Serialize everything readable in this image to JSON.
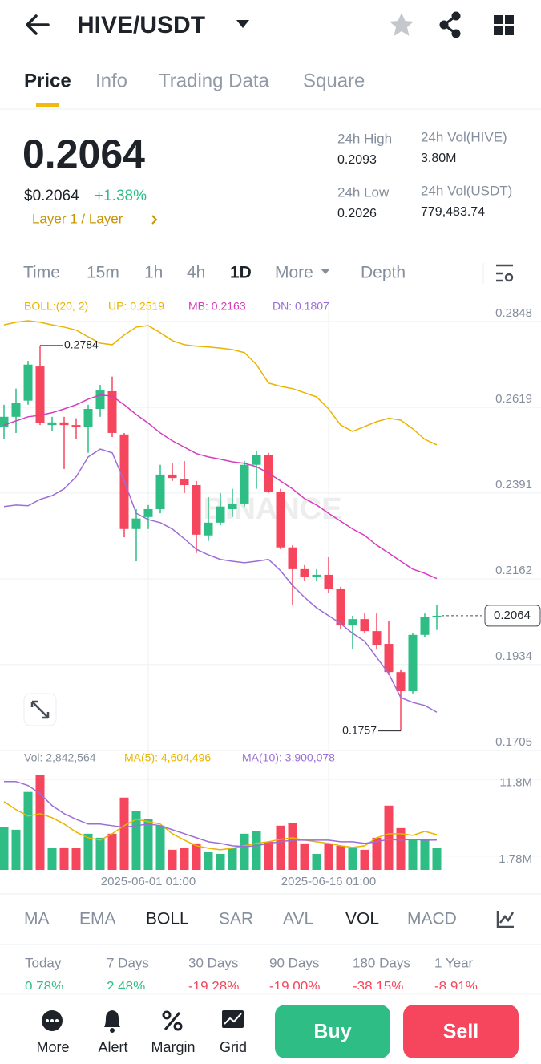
{
  "header": {
    "title": "HIVE/USDT"
  },
  "tabs": [
    "Price",
    "Info",
    "Trading Data",
    "Square"
  ],
  "ticker": {
    "price": "0.2064",
    "price_usd": "$0.2064",
    "change": "+1.38%",
    "tag": "Layer 1 / Layer"
  },
  "stats": [
    {
      "label": "24h High",
      "value": "0.2093"
    },
    {
      "label": "24h Vol(HIVE)",
      "value": "3.80M"
    },
    {
      "label": "24h Low",
      "value": "0.2026"
    },
    {
      "label": "24h Vol(USDT)",
      "value": "779,483.74"
    }
  ],
  "intervals": [
    "Time",
    "15m",
    "1h",
    "4h",
    "1D",
    "More",
    "Depth"
  ],
  "watermark": "BINANCE",
  "indicators": [
    "MA",
    "EMA",
    "BOLL",
    "SAR",
    "AVL",
    "VOL",
    "MACD"
  ],
  "performance": [
    {
      "label": "Today",
      "value": "0.78%"
    },
    {
      "label": "7 Days",
      "value": "2.48%"
    },
    {
      "label": "30 Days",
      "value": "-19.28%"
    },
    {
      "label": "90 Days",
      "value": "-19.00%"
    },
    {
      "label": "180 Days",
      "value": "-38.15%"
    },
    {
      "label": "1 Year",
      "value": "-8.91%"
    }
  ],
  "actions": [
    "More",
    "Alert",
    "Margin",
    "Grid"
  ],
  "buttons": [
    "Buy",
    "Sell"
  ],
  "chart_data": [
    {
      "type": "candlestick",
      "indicator": "BOLL:(20, 2)",
      "open": [
        0.2566,
        0.2594,
        0.2637,
        0.2728,
        0.2572,
        0.2579,
        0.2572,
        0.2566,
        0.2615,
        0.2662,
        0.2547,
        0.2295,
        0.2327,
        0.2348,
        0.244,
        0.2429,
        0.2412,
        0.2278,
        0.2312,
        0.2348,
        0.2363,
        0.2466,
        0.2493,
        0.2395,
        0.2246,
        0.2188,
        0.2167,
        0.2173,
        0.2135,
        0.2038,
        0.2055,
        0.2023,
        0.1989,
        0.1914,
        0.1863,
        0.2013,
        0.206
      ],
      "high": [
        0.2626,
        0.2669,
        0.2743,
        0.2784,
        0.2594,
        0.2594,
        0.259,
        0.2626,
        0.2679,
        0.2701,
        0.2551,
        0.2348,
        0.2359,
        0.2466,
        0.247,
        0.2476,
        0.2423,
        0.238,
        0.2391,
        0.2402,
        0.2476,
        0.2504,
        0.2498,
        0.2402,
        0.2252,
        0.2199,
        0.2188,
        0.222,
        0.2141,
        0.2064,
        0.207,
        0.207,
        0.2049,
        0.1921,
        0.2017,
        0.207,
        0.2093
      ],
      "low": [
        0.2534,
        0.2551,
        0.2626,
        0.2572,
        0.2555,
        0.2455,
        0.2534,
        0.2498,
        0.2594,
        0.254,
        0.2273,
        0.2209,
        0.2295,
        0.2337,
        0.2423,
        0.2391,
        0.2231,
        0.2263,
        0.2305,
        0.2327,
        0.2355,
        0.2402,
        0.2391,
        0.2241,
        0.2092,
        0.2156,
        0.2156,
        0.2124,
        0.2028,
        0.1974,
        0.2017,
        0.1974,
        0.1906,
        0.1757,
        0.1857,
        0.2006,
        0.2026
      ],
      "close": [
        0.2594,
        0.2632,
        0.2733,
        0.2577,
        0.2579,
        0.2572,
        0.2566,
        0.2615,
        0.2664,
        0.2551,
        0.2295,
        0.2323,
        0.2348,
        0.244,
        0.2431,
        0.2412,
        0.228,
        0.2312,
        0.2355,
        0.2363,
        0.2466,
        0.2493,
        0.2395,
        0.2246,
        0.2188,
        0.2167,
        0.2173,
        0.2135,
        0.2038,
        0.2055,
        0.2023,
        0.1985,
        0.1914,
        0.1863,
        0.2013,
        0.206,
        0.2064
      ],
      "up_color": "#2ebd85",
      "down_color": "#f6465d",
      "series": [
        {
          "name": "UP: 0.2519",
          "color": "#e8b400",
          "values": [
            0.2839,
            0.2846,
            0.285,
            0.2846,
            0.2839,
            0.2833,
            0.2825,
            0.2807,
            0.279,
            0.2786,
            0.2812,
            0.2833,
            0.2837,
            0.2818,
            0.2797,
            0.2786,
            0.2782,
            0.278,
            0.2777,
            0.2773,
            0.2765,
            0.2733,
            0.2684,
            0.2675,
            0.2669,
            0.2658,
            0.2647,
            0.2615,
            0.2572,
            0.2555,
            0.2568,
            0.2581,
            0.259,
            0.2585,
            0.2562,
            0.2534,
            0.2519
          ]
        },
        {
          "name": "MB: 0.2163",
          "color": "#d63bbd",
          "values": [
            0.2572,
            0.2583,
            0.2594,
            0.2598,
            0.2605,
            0.2615,
            0.2626,
            0.2641,
            0.2652,
            0.2649,
            0.2626,
            0.26,
            0.2577,
            0.2551,
            0.253,
            0.2513,
            0.2496,
            0.2487,
            0.2481,
            0.2474,
            0.247,
            0.2461,
            0.2444,
            0.2423,
            0.2402,
            0.2376,
            0.2359,
            0.2337,
            0.2316,
            0.2295,
            0.2278,
            0.2252,
            0.2231,
            0.2209,
            0.2188,
            0.2177,
            0.2163
          ]
        },
        {
          "name": "DN: 0.1807",
          "color": "#9b6dd6",
          "values": [
            0.2355,
            0.2359,
            0.2357,
            0.2374,
            0.2384,
            0.2402,
            0.2434,
            0.2487,
            0.2508,
            0.2498,
            0.2423,
            0.2337,
            0.232,
            0.2312,
            0.2295,
            0.2269,
            0.2241,
            0.2226,
            0.2214,
            0.2209,
            0.2205,
            0.2209,
            0.2214,
            0.2184,
            0.2145,
            0.2113,
            0.2085,
            0.2064,
            0.2043,
            0.2017,
            0.1996,
            0.1953,
            0.191,
            0.1846,
            0.1833,
            0.1825,
            0.1807
          ]
        }
      ],
      "ylim": [
        0.1705,
        0.2914
      ],
      "yticks": [
        0.2848,
        0.2619,
        0.2391,
        0.2162,
        0.1934,
        0.1705
      ],
      "grid": true,
      "annotations": {
        "high": "0.2784",
        "low": "0.1757",
        "last": "0.2064"
      }
    },
    {
      "type": "bar",
      "categories": [
        null,
        null,
        null,
        null,
        null,
        null,
        null,
        null,
        null,
        null,
        null,
        null,
        "2025-06-01 01:00",
        null,
        null,
        null,
        null,
        null,
        null,
        null,
        null,
        null,
        null,
        null,
        null,
        null,
        null,
        "2025-06-16 01:00",
        null,
        null,
        null,
        null,
        null,
        null,
        null,
        null,
        null
      ],
      "series": [
        {
          "name": "Vol: 2,842,564",
          "type": "bar",
          "values": [
            5570000,
            5250000,
            10190000,
            12390000,
            2840000,
            2940000,
            2840000,
            4730000,
            4200000,
            4730000,
            9450000,
            7670000,
            6620000,
            5780000,
            2630000,
            2840000,
            3470000,
            2310000,
            2100000,
            2940000,
            4730000,
            5040000,
            3680000,
            5780000,
            6090000,
            3470000,
            2100000,
            3470000,
            3150000,
            2940000,
            2630000,
            4200000,
            8400000,
            5460000,
            3990000,
            3990000,
            2842564
          ]
        },
        {
          "name": "MA(5): 4,604,496",
          "type": "line",
          "color": "#e8b400",
          "values": [
            8930000,
            7880000,
            7040000,
            7350000,
            6830000,
            5990000,
            4940000,
            4200000,
            3890000,
            4730000,
            5780000,
            6620000,
            6300000,
            5990000,
            4730000,
            3890000,
            3150000,
            2840000,
            2630000,
            2840000,
            3150000,
            3470000,
            3680000,
            3990000,
            4200000,
            3890000,
            3680000,
            3470000,
            3150000,
            2940000,
            3150000,
            4200000,
            4730000,
            4730000,
            4520000,
            5040000,
            4604496
          ]
        },
        {
          "name": "MA(10): 3,900,078",
          "type": "line",
          "color": "#9b6dd6",
          "values": [
            11550000,
            11550000,
            11030000,
            9980000,
            8400000,
            7350000,
            6620000,
            5990000,
            5990000,
            5780000,
            5570000,
            5780000,
            5990000,
            5780000,
            5250000,
            4730000,
            4200000,
            3680000,
            3470000,
            3150000,
            3050000,
            3150000,
            3470000,
            3680000,
            3890000,
            3890000,
            3890000,
            3890000,
            3680000,
            3680000,
            3470000,
            3680000,
            3990000,
            3890000,
            3990000,
            3890000,
            3900078
          ]
        }
      ],
      "ylim": [
        0,
        13300000
      ],
      "yticks": [
        {
          "value": 11800000,
          "label": "11.8M"
        },
        {
          "value": 1780000,
          "label": "1.78M"
        }
      ]
    }
  ]
}
